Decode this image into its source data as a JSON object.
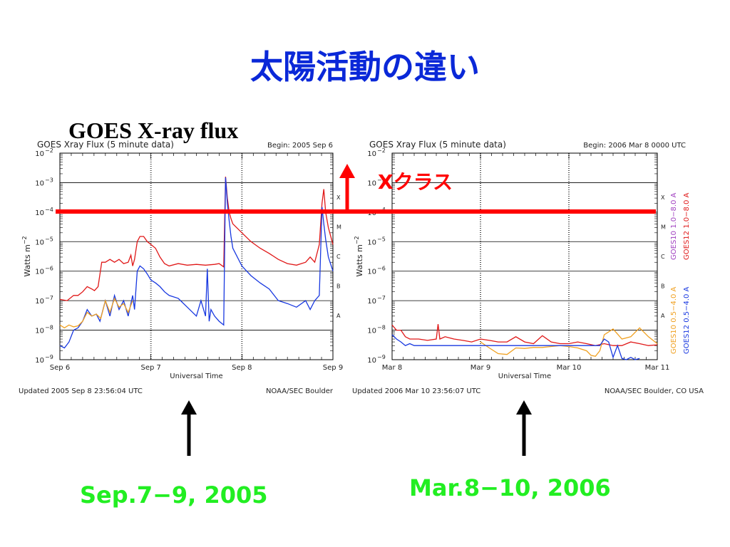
{
  "slide": {
    "title": "太陽活動の違い",
    "subtitle": "GOES X-ray flux",
    "xclass_label": "Xクラス",
    "caption_left": "Sep.7−9, 2005",
    "caption_right": "Mar.8−10, 2006"
  },
  "chart_data": [
    {
      "type": "line",
      "title": "GOES Xray Flux (5 minute data)",
      "begin": "Begin:  2005 Sep 6",
      "ylabel": "Watts m",
      "ylabel_sup": "−2",
      "xlabel": "Universal Time",
      "x_ticks": [
        "Sep 6",
        "Sep 7",
        "Sep 8",
        "Sep 9"
      ],
      "y_ticks": [
        "10",
        "10",
        "10",
        "10",
        "10",
        "10",
        "10",
        "10"
      ],
      "y_exps": [
        "−2",
        "−3",
        "−4",
        "−5",
        "−6",
        "−7",
        "−8",
        "−9"
      ],
      "class_labels": [
        "X",
        "M",
        "C",
        "B",
        "A"
      ],
      "yscale": "log",
      "ylim": [
        1e-09,
        0.01
      ],
      "xlim": [
        0,
        3
      ],
      "updated": "Updated 2005 Sep  8 23:56:04 UTC",
      "source": "NOAA/SEC Boulder",
      "legend": [],
      "series": [
        {
          "color": "#e01818",
          "x": [
            0,
            0.08,
            0.15,
            0.2,
            0.25,
            0.3,
            0.35,
            0.38,
            0.42,
            0.46,
            0.5,
            0.55,
            0.6,
            0.65,
            0.7,
            0.75,
            0.78,
            0.8,
            0.82,
            0.85,
            0.88,
            0.92,
            0.96,
            1.0,
            1.05,
            1.1,
            1.15,
            1.2,
            1.3,
            1.4,
            1.5,
            1.6,
            1.7,
            1.75,
            1.8,
            1.82,
            1.84,
            1.86,
            1.88,
            1.9,
            2.0,
            2.1,
            2.2,
            2.3,
            2.4,
            2.5,
            2.6,
            2.7,
            2.75,
            2.8,
            2.85,
            2.88,
            2.9,
            2.92,
            2.95,
            3.0
          ],
          "y": [
            1.1e-07,
            1e-07,
            1.5e-07,
            1.5e-07,
            2e-07,
            3e-07,
            2.5e-07,
            2.2e-07,
            3e-07,
            2e-06,
            2e-06,
            2.5e-06,
            2e-06,
            2.5e-06,
            1.8e-06,
            2e-06,
            3.5e-06,
            1.5e-06,
            2.5e-06,
            1e-05,
            1.5e-05,
            1.5e-05,
            1e-05,
            8e-06,
            6e-06,
            3e-06,
            1.8e-06,
            1.5e-06,
            1.8e-06,
            1.6e-06,
            1.7e-06,
            1.6e-06,
            1.7e-06,
            1.8e-06,
            1.4e-06,
            0.0016,
            0.0003,
            0.0001,
            6e-05,
            4e-05,
            2e-05,
            1e-05,
            6e-06,
            4e-06,
            2.5e-06,
            1.8e-06,
            1.6e-06,
            2e-06,
            3e-06,
            2e-06,
            8e-06,
            0.0002,
            0.0006,
            0.0001,
            3e-05,
            8e-06
          ]
        },
        {
          "color": "#1838e0",
          "x": [
            0,
            0.05,
            0.1,
            0.15,
            0.2,
            0.25,
            0.3,
            0.35,
            0.4,
            0.44,
            0.5,
            0.55,
            0.6,
            0.65,
            0.7,
            0.75,
            0.8,
            0.82,
            0.85,
            0.88,
            0.92,
            0.96,
            1.0,
            1.05,
            1.1,
            1.15,
            1.2,
            1.3,
            1.4,
            1.5,
            1.55,
            1.6,
            1.62,
            1.64,
            1.66,
            1.7,
            1.75,
            1.8,
            1.82,
            1.84,
            1.86,
            1.88,
            1.9,
            2.0,
            2.1,
            2.2,
            2.3,
            2.4,
            2.5,
            2.6,
            2.7,
            2.75,
            2.8,
            2.85,
            2.88,
            2.9,
            2.92,
            2.95,
            3.0
          ],
          "y": [
            3e-09,
            2.5e-09,
            4e-09,
            1e-08,
            1.2e-08,
            2e-08,
            5e-08,
            3e-08,
            3.5e-08,
            2e-08,
            1e-07,
            3e-08,
            1.5e-07,
            5e-08,
            1e-07,
            3e-08,
            1.5e-07,
            5e-08,
            1e-06,
            1.5e-06,
            1.2e-06,
            8e-07,
            5e-07,
            4e-07,
            3e-07,
            2e-07,
            1.5e-07,
            1.2e-07,
            6e-08,
            3e-08,
            1e-07,
            3e-08,
            1.2e-06,
            2e-08,
            5e-08,
            3e-08,
            2e-08,
            1.5e-08,
            0.0015,
            0.0002,
            5e-05,
            1.5e-05,
            6e-06,
            1.5e-06,
            7e-07,
            4e-07,
            2.5e-07,
            1e-07,
            8e-08,
            6e-08,
            1e-07,
            5e-08,
            1e-07,
            1.5e-07,
            0.00015,
            4e-05,
            1.2e-05,
            3e-06,
            1e-06
          ]
        },
        {
          "color": "#f0a020",
          "x": [
            0,
            0.05,
            0.1,
            0.15,
            0.2,
            0.25,
            0.3,
            0.35,
            0.4,
            0.45,
            0.5,
            0.55,
            0.6,
            0.65,
            0.7,
            0.75,
            0.8
          ],
          "y": [
            1.5e-08,
            1.2e-08,
            1.5e-08,
            1.3e-08,
            1.4e-08,
            2e-08,
            4e-08,
            3e-08,
            3.5e-08,
            2.5e-08,
            1e-07,
            4e-08,
            1.2e-07,
            6e-08,
            8e-08,
            4e-08,
            1e-07
          ]
        }
      ]
    },
    {
      "type": "line",
      "title": "GOES Xray Flux (5 minute data)",
      "begin": "Begin:  2006 Mar 8 0000 UTC",
      "ylabel": "Watts m",
      "ylabel_sup": "−2",
      "xlabel": "Universal Time",
      "x_ticks": [
        "Mar 8",
        "Mar 9",
        "Mar 10",
        "Mar 11"
      ],
      "y_ticks": [
        "10",
        "10",
        "10",
        "10",
        "10",
        "10",
        "10",
        "10"
      ],
      "y_exps": [
        "−2",
        "−3",
        "−4",
        "−5",
        "−6",
        "−7",
        "−8",
        "−9"
      ],
      "class_labels": [
        "X",
        "M",
        "C",
        "B",
        "A"
      ],
      "yscale": "log",
      "ylim": [
        1e-09,
        0.01
      ],
      "xlim": [
        0,
        3
      ],
      "updated": "Updated 2006 Mar 10 23:56:07 UTC",
      "source": "NOAA/SEC Boulder, CO USA",
      "legend": [
        {
          "label": "GOES10 1.0−8.0 A",
          "color": "#a040c0"
        },
        {
          "label": "GOES12 1.0−8.0 A",
          "color": "#e01818"
        },
        {
          "label": "GOES10 0.5−4.0 A",
          "color": "#f0a020"
        },
        {
          "label": "GOES12 0.5−4.0 A",
          "color": "#1838e0"
        }
      ],
      "series": [
        {
          "color": "#e01818",
          "x": [
            0,
            0.05,
            0.1,
            0.15,
            0.2,
            0.3,
            0.4,
            0.5,
            0.52,
            0.54,
            0.6,
            0.7,
            0.8,
            0.9,
            1.0,
            1.1,
            1.2,
            1.3,
            1.4,
            1.5,
            1.6,
            1.7,
            1.8,
            1.9,
            2.0,
            2.1,
            2.2,
            2.3,
            2.4,
            2.5,
            2.6,
            2.7,
            2.8,
            2.9,
            3.0
          ],
          "y": [
            1.5e-08,
            1e-08,
            1e-08,
            6e-09,
            5e-09,
            5e-09,
            4.5e-09,
            5e-09,
            1.6e-08,
            5e-09,
            6e-09,
            5e-09,
            4.5e-09,
            4e-09,
            5e-09,
            4.5e-09,
            4e-09,
            4e-09,
            6e-09,
            4e-09,
            3.5e-09,
            6.5e-09,
            4e-09,
            3.5e-09,
            3.5e-09,
            4e-09,
            3.5e-09,
            3e-09,
            3.5e-09,
            3e-09,
            3e-09,
            4e-09,
            3.5e-09,
            3e-09,
            3.2e-09
          ]
        },
        {
          "color": "#f0a020",
          "x": [
            1.0,
            1.1,
            1.2,
            1.3,
            1.4,
            1.5,
            1.6,
            1.7,
            1.8,
            1.9,
            2.0,
            2.1,
            2.2,
            2.25,
            2.3,
            2.35,
            2.4,
            2.5,
            2.6,
            2.7,
            2.8,
            2.9,
            3.0
          ],
          "y": [
            4e-09,
            2.5e-09,
            1.6e-09,
            1.5e-09,
            2.5e-09,
            2.4e-09,
            2.6e-09,
            2.6e-09,
            2.8e-09,
            3e-09,
            2.8e-09,
            2.5e-09,
            2e-09,
            1.4e-09,
            1.3e-09,
            2e-09,
            7e-09,
            1.1e-08,
            5e-09,
            6e-09,
            1.2e-08,
            6e-09,
            3.5e-09
          ]
        },
        {
          "color": "#1838e0",
          "x": [
            0,
            0.05,
            0.1,
            0.15,
            0.2,
            0.25,
            2.35,
            2.4,
            2.45,
            2.5,
            2.55,
            2.6,
            2.65,
            2.7,
            2.75,
            2.8
          ],
          "y": [
            7e-09,
            5e-09,
            4e-09,
            3e-09,
            3.5e-09,
            3e-09,
            3e-09,
            5e-09,
            4e-09,
            1.2e-09,
            3e-09,
            1.1e-09,
            1e-09,
            1.2e-09,
            1e-09,
            1.1e-09
          ]
        }
      ]
    }
  ]
}
